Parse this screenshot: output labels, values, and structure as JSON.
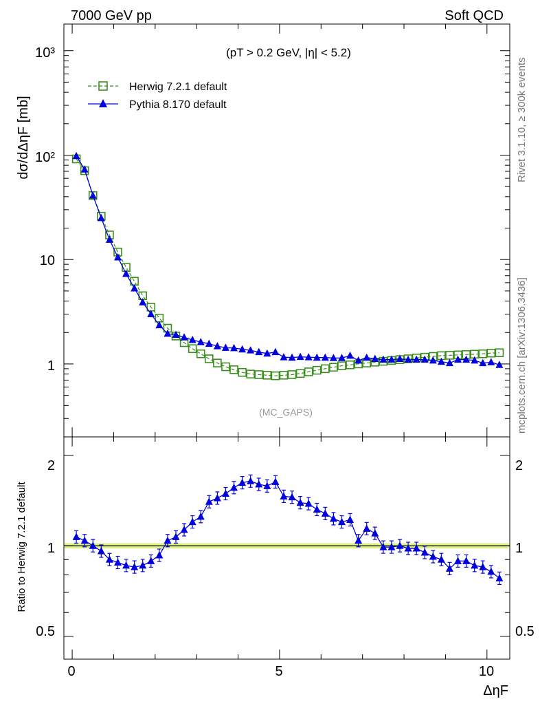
{
  "header": {
    "left": "7000 GeV pp",
    "right": "Soft QCD"
  },
  "side_labels": {
    "rivet": "Rivet 3.1.10, ≥ 300k events",
    "mcplots": "mcplots.cern.ch [arXiv:1306.3436]"
  },
  "main_plot": {
    "ylabel": "dσ/dΔηF [mb]",
    "cut_label": "(pT > 0.2 GeV, |η| < 5.2)",
    "watermark": "(MC_GAPS)",
    "y_ticks": [
      "10³",
      "10²",
      "10",
      "1"
    ]
  },
  "ratio_plot": {
    "ylabel": "Ratio to Herwig 7.2.1 default",
    "y_ticks": [
      "2",
      "1",
      "0.5"
    ]
  },
  "x_axis": {
    "label": "ΔηF",
    "ticks": [
      "0",
      "5",
      "10"
    ]
  },
  "legend": {
    "herwig": "Herwig 7.2.1 default",
    "pythia": "Pythia 8.170 default"
  },
  "colors": {
    "herwig": "#3a8f1c",
    "pythia": "#0000dd",
    "ratio_band": "#d8f070"
  },
  "chart_data": [
    {
      "type": "line",
      "log_y": true,
      "ylim": [
        0.2,
        1800
      ],
      "xlim": [
        -0.2,
        10.55
      ],
      "x_label": "ΔηF",
      "y_label": "dσ/dΔηF [mb]",
      "x": [
        0.1,
        0.3,
        0.5,
        0.7,
        0.9,
        1.1,
        1.3,
        1.5,
        1.7,
        1.9,
        2.1,
        2.3,
        2.5,
        2.7,
        2.9,
        3.1,
        3.3,
        3.5,
        3.7,
        3.9,
        4.1,
        4.3,
        4.5,
        4.7,
        4.9,
        5.1,
        5.3,
        5.5,
        5.7,
        5.9,
        6.1,
        6.3,
        6.5,
        6.7,
        6.9,
        7.1,
        7.3,
        7.5,
        7.7,
        7.9,
        8.1,
        8.3,
        8.5,
        8.7,
        8.9,
        9.1,
        9.3,
        9.5,
        9.7,
        9.9,
        10.1,
        10.3
      ],
      "series": [
        {
          "name": "Herwig 7.2.1 default",
          "values": [
            92,
            71,
            41,
            26,
            17.2,
            11.8,
            8.4,
            6.2,
            4.5,
            3.5,
            2.75,
            2.2,
            1.85,
            1.6,
            1.4,
            1.25,
            1.12,
            1.02,
            0.94,
            0.88,
            0.83,
            0.8,
            0.79,
            0.78,
            0.77,
            0.78,
            0.79,
            0.81,
            0.84,
            0.87,
            0.9,
            0.93,
            0.96,
            0.98,
            1.0,
            1.02,
            1.04,
            1.06,
            1.08,
            1.1,
            1.12,
            1.14,
            1.16,
            1.18,
            1.2,
            1.21,
            1.22,
            1.23,
            1.24,
            1.25,
            1.27,
            1.28
          ]
        },
        {
          "name": "Pythia 8.170 default",
          "values": [
            98,
            73,
            41,
            25,
            15.5,
            10.5,
            7.3,
            5.3,
            3.9,
            3.0,
            2.35,
            1.95,
            1.9,
            1.8,
            1.7,
            1.62,
            1.56,
            1.48,
            1.43,
            1.42,
            1.38,
            1.35,
            1.3,
            1.26,
            1.3,
            1.16,
            1.15,
            1.17,
            1.16,
            1.15,
            1.15,
            1.14,
            1.14,
            1.2,
            1.08,
            1.15,
            1.12,
            1.1,
            1.1,
            1.12,
            1.1,
            1.1,
            1.1,
            1.08,
            1.05,
            1.02,
            1.1,
            1.1,
            1.08,
            1.02,
            1.04,
            0.98
          ]
        }
      ]
    },
    {
      "type": "line",
      "log_y": true,
      "ylim": [
        0.42,
        2.3
      ],
      "x_label": "ΔηF",
      "y_label": "Ratio to Herwig 7.2.1 default",
      "x": [
        0.1,
        0.3,
        0.5,
        0.7,
        0.9,
        1.1,
        1.3,
        1.5,
        1.7,
        1.9,
        2.1,
        2.3,
        2.5,
        2.7,
        2.9,
        3.1,
        3.3,
        3.5,
        3.7,
        3.9,
        4.1,
        4.3,
        4.5,
        4.7,
        4.9,
        5.1,
        5.3,
        5.5,
        5.7,
        5.9,
        6.1,
        6.3,
        6.5,
        6.7,
        6.9,
        7.1,
        7.3,
        7.5,
        7.7,
        7.9,
        8.1,
        8.3,
        8.5,
        8.7,
        8.9,
        9.1,
        9.3,
        9.5,
        9.7,
        9.9,
        10.1,
        10.3
      ],
      "series": [
        {
          "name": "Pythia 8.170 default",
          "values": [
            1.07,
            1.04,
            1.0,
            0.96,
            0.9,
            0.88,
            0.86,
            0.85,
            0.86,
            0.89,
            0.93,
            1.04,
            1.07,
            1.13,
            1.2,
            1.25,
            1.4,
            1.44,
            1.49,
            1.56,
            1.62,
            1.64,
            1.6,
            1.58,
            1.63,
            1.46,
            1.45,
            1.39,
            1.38,
            1.32,
            1.28,
            1.23,
            1.2,
            1.22,
            1.04,
            1.14,
            1.1,
            0.99,
            0.99,
            1.0,
            0.98,
            0.98,
            0.95,
            0.92,
            0.9,
            0.84,
            0.89,
            0.89,
            0.86,
            0.85,
            0.82,
            0.78
          ]
        },
        {
          "name": "Herwig 7.2.1 default",
          "values": [
            1,
            1,
            1,
            1,
            1,
            1,
            1,
            1,
            1,
            1,
            1,
            1,
            1,
            1,
            1,
            1,
            1,
            1,
            1,
            1,
            1,
            1,
            1,
            1,
            1,
            1,
            1,
            1,
            1,
            1,
            1,
            1,
            1,
            1,
            1,
            1,
            1,
            1,
            1,
            1,
            1,
            1,
            1,
            1,
            1,
            1,
            1,
            1,
            1,
            1,
            1,
            1
          ]
        }
      ]
    }
  ]
}
